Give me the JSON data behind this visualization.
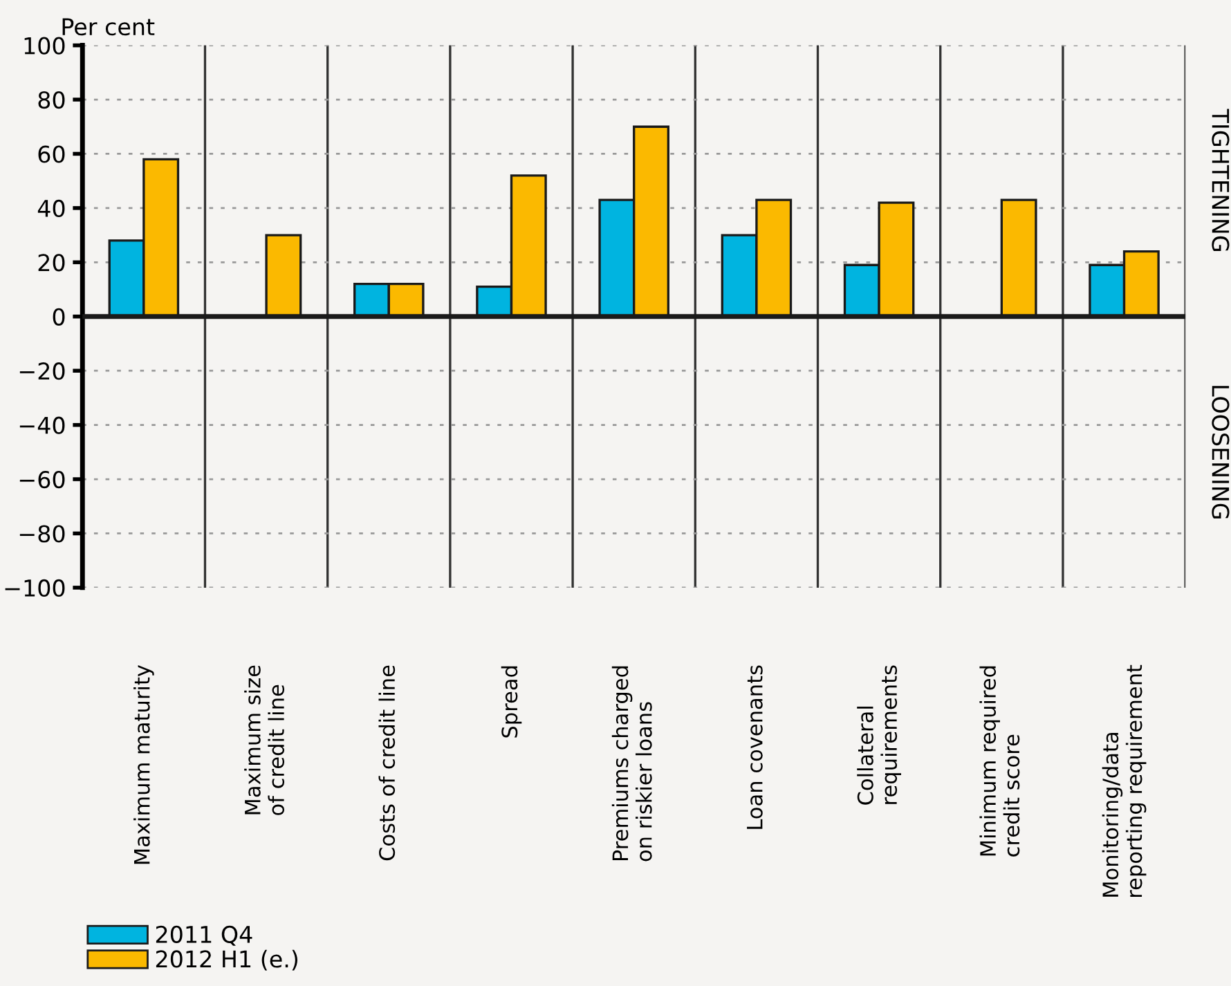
{
  "chart_data": {
    "type": "bar",
    "ylabel": "Per cent",
    "categories": [
      "Maximum maturity",
      "Maximum size\nof credit line",
      "Costs of credit line",
      "Spread",
      "Premiums charged\non riskier loans",
      "Loan covenants",
      "Collateral\nrequirements",
      "Minimum required\ncredit score",
      "Monitoring/data\nreporting requirement"
    ],
    "series": [
      {
        "name": "2011 Q4",
        "color": "#00b4e0",
        "values": [
          28,
          null,
          12,
          11,
          43,
          30,
          19,
          null,
          19
        ]
      },
      {
        "name": "2012 H1 (e.)",
        "color": "#fbb900",
        "values": [
          58,
          30,
          12,
          52,
          70,
          43,
          42,
          43,
          24
        ]
      }
    ],
    "ylim": [
      -100,
      100
    ],
    "yticks": [
      -100,
      -80,
      -60,
      -40,
      -20,
      0,
      20,
      40,
      60,
      80,
      100
    ],
    "grid": "y",
    "legend": "bottom left",
    "annotations": [
      "TIGHTENING",
      "LOOSENING"
    ]
  }
}
